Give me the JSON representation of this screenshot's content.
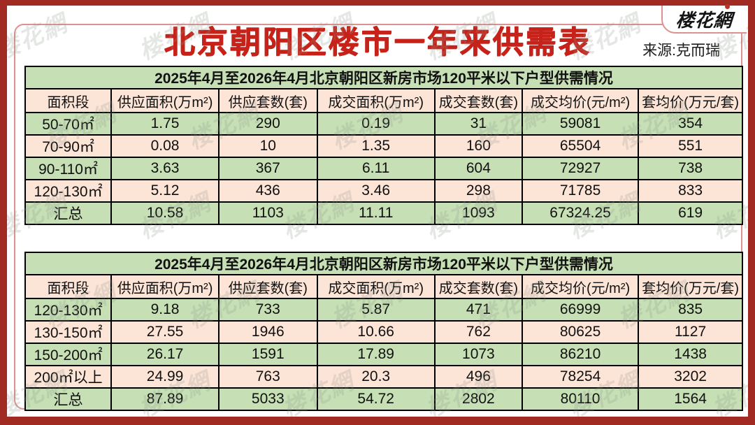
{
  "page": {
    "title": "北京朝阳区楼市一年来供需表",
    "source": "来源:克而瑞",
    "logo": "楼花網",
    "watermark": "楼花網"
  },
  "colors": {
    "frame_red": "#a12b22",
    "title_red": "#c7221a",
    "row_green": "#c6dfb4",
    "row_peach": "#fce4d6",
    "border_black": "#000000",
    "panel_pink_line": "#dc9290"
  },
  "chart_data": [
    {
      "type": "table",
      "title": "2025年4月至2026年4月北京朝阳区新房市场120平米以下户型供需情况",
      "columns": [
        "面积段",
        "供应面积(万m²)",
        "供应套数(套)",
        "成交面积(万m²)",
        "成交套数(套)",
        "成交均价(元/m²)",
        "套均价(万元/套)"
      ],
      "rows": [
        [
          "50-70㎡",
          "1.75",
          "290",
          "0.19",
          "31",
          "59081",
          "354"
        ],
        [
          "70-90㎡",
          "0.08",
          "10",
          "1.35",
          "160",
          "65504",
          "551"
        ],
        [
          "90-110㎡",
          "3.63",
          "367",
          "6.11",
          "604",
          "72927",
          "738"
        ],
        [
          "120-130㎡",
          "5.12",
          "436",
          "3.46",
          "298",
          "71785",
          "833"
        ],
        [
          "汇总",
          "10.58",
          "1103",
          "11.11",
          "1093",
          "67324.25",
          "619"
        ]
      ]
    },
    {
      "type": "table",
      "title": "2025年4月至2026年4月北京朝阳区新房市场120平米以下户型供需情况",
      "columns": [
        "面积段",
        "供应面积(万m²)",
        "供应套数(套)",
        "成交面积(万m²)",
        "成交套数(套)",
        "成交均价(元/m²)",
        "套均价(万元/套)"
      ],
      "rows": [
        [
          "120-130㎡",
          "9.18",
          "733",
          "5.87",
          "471",
          "66999",
          "835"
        ],
        [
          "130-150㎡",
          "27.55",
          "1946",
          "10.66",
          "762",
          "80625",
          "1127"
        ],
        [
          "150-200㎡",
          "26.17",
          "1591",
          "17.89",
          "1073",
          "86210",
          "1438"
        ],
        [
          "200㎡以上",
          "24.99",
          "763",
          "20.3",
          "496",
          "78254",
          "3202"
        ],
        [
          "汇总",
          "87.89",
          "5033",
          "54.72",
          "2802",
          "80110",
          "1564"
        ]
      ]
    }
  ]
}
